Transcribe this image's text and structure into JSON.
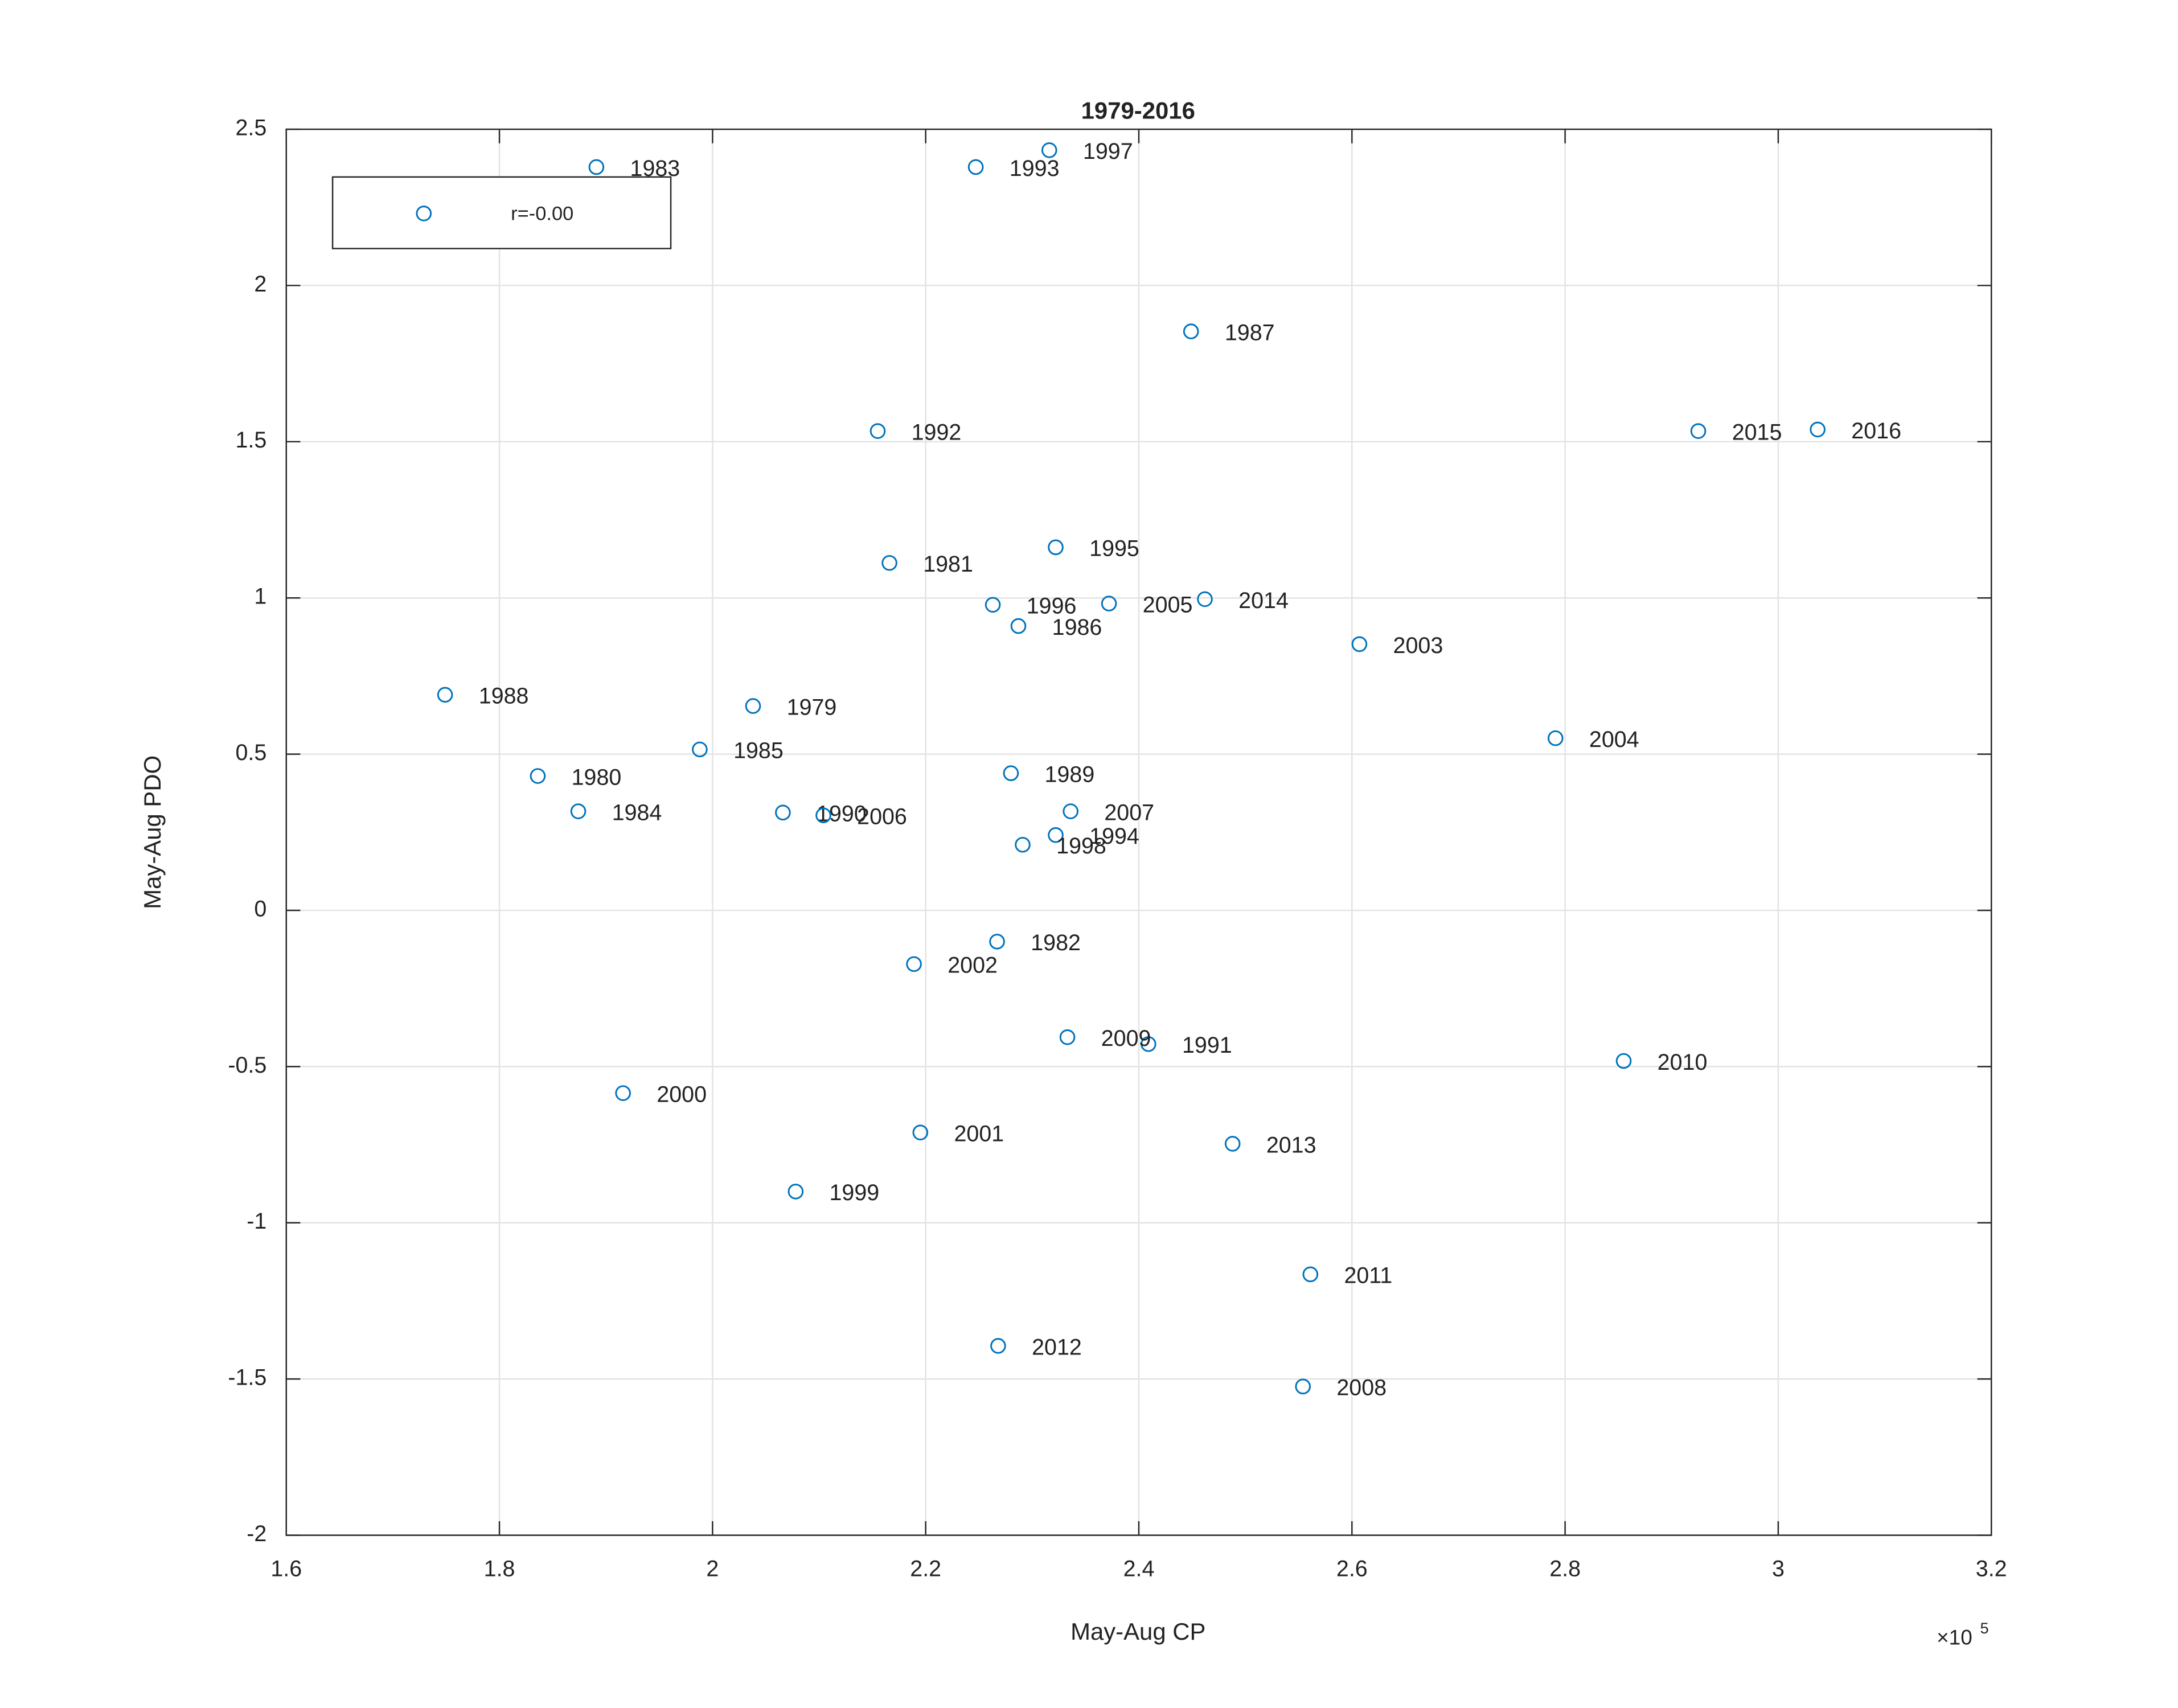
{
  "chart_data": {
    "type": "scatter",
    "title": "1979-2016",
    "x_label": "May-Aug CP",
    "y_label": "May-Aug PDO",
    "x_multiplier": {
      "base": "×10",
      "exponent": "5"
    },
    "xlim": [
      1.6,
      3.2
    ],
    "xticks": [
      1.6,
      1.8,
      2,
      2.2,
      2.4,
      2.6,
      2.8,
      3,
      3.2
    ],
    "ylim": [
      -2,
      2.5
    ],
    "yticks": [
      -2,
      -1.5,
      -1,
      -0.5,
      0,
      0.5,
      1,
      1.5,
      2,
      2.5
    ],
    "grid": true,
    "legend": "upper left",
    "series": [
      {
        "name": "r=-0.00",
        "color": "#0072bd",
        "labels": [
          "1979",
          "1980",
          "1981",
          "1982",
          "1983",
          "1984",
          "1985",
          "1986",
          "1987",
          "1988",
          "1989",
          "1990",
          "1991",
          "1992",
          "1993",
          "1994",
          "1995",
          "1996",
          "1997",
          "1998",
          "1999",
          "2000",
          "2001",
          "2002",
          "2003",
          "2004",
          "2005",
          "2006",
          "2007",
          "2008",
          "2009",
          "2010",
          "2011",
          "2012",
          "2013",
          "2014",
          "2015",
          "2016"
        ],
        "x": [
          2.038,
          1.836,
          2.166,
          2.267,
          1.891,
          1.874,
          1.988,
          2.287,
          2.449,
          1.749,
          2.28,
          2.066,
          2.409,
          2.155,
          2.247,
          2.322,
          2.322,
          2.263,
          2.316,
          2.291,
          2.078,
          1.916,
          2.195,
          2.189,
          2.607,
          2.791,
          2.372,
          2.104,
          2.336,
          2.554,
          2.333,
          2.855,
          2.561,
          2.268,
          2.488,
          2.462,
          2.925,
          3.037
        ],
        "values": [
          0.654,
          0.43,
          1.112,
          -0.1,
          2.379,
          0.317,
          0.515,
          0.91,
          1.853,
          0.69,
          0.439,
          0.313,
          -0.428,
          1.534,
          2.379,
          0.241,
          1.162,
          0.978,
          2.433,
          0.21,
          -0.9,
          -0.585,
          -0.711,
          -0.172,
          0.852,
          0.551,
          0.982,
          0.304,
          0.317,
          -1.524,
          -0.406,
          -0.482,
          -1.165,
          -1.394,
          -0.747,
          0.996,
          1.534,
          1.539
        ]
      }
    ]
  }
}
